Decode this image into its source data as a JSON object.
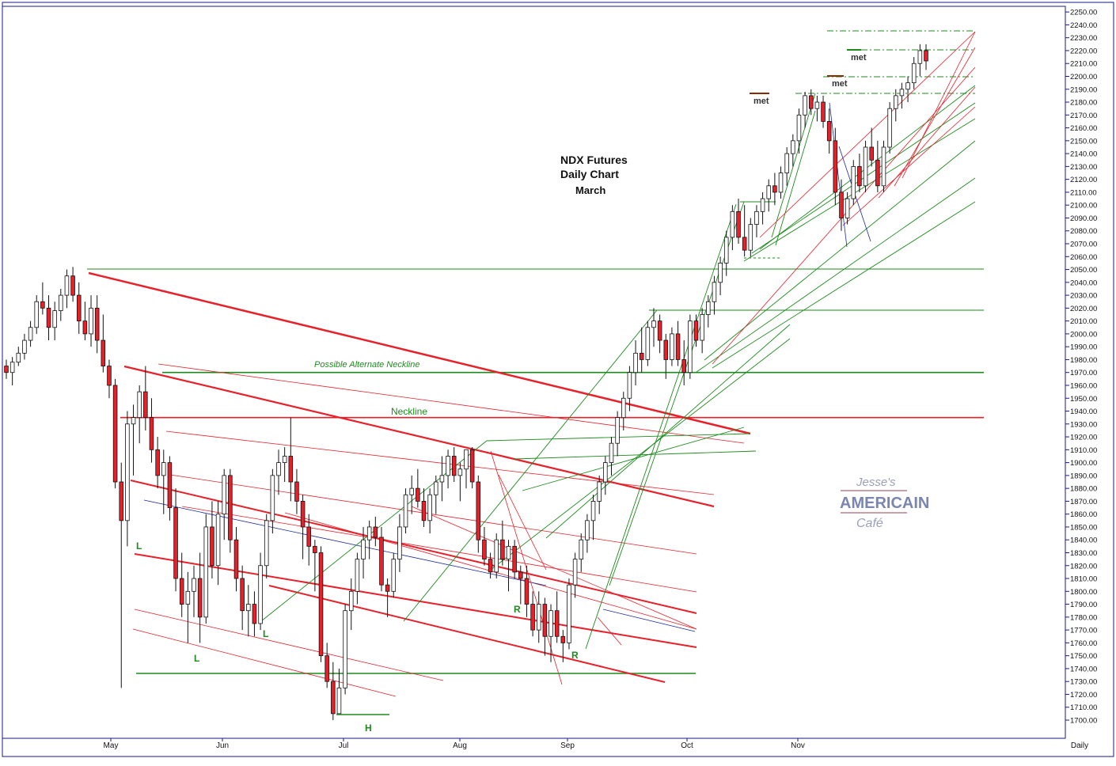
{
  "chart_data": {
    "type": "candlestick",
    "title": "NDX  Futures",
    "subtitle": "Daily Chart",
    "contract": "March",
    "watermark": "Jesse's AMERICAIN Café",
    "y_axis": {
      "ylim": [
        1690,
        2255
      ],
      "ticks": [
        1700,
        1710,
        1720,
        1730,
        1740,
        1750,
        1760,
        1770,
        1780,
        1790,
        1800,
        1810,
        1820,
        1830,
        1840,
        1850,
        1860,
        1870,
        1880,
        1890,
        1900,
        1910,
        1920,
        1930,
        1940,
        1950,
        1960,
        1970,
        1980,
        1990,
        2000,
        2010,
        2020,
        2030,
        2040,
        2050,
        2060,
        2070,
        2080,
        2090,
        2100,
        2110,
        2120,
        2130,
        2140,
        2150,
        2160,
        2170,
        2180,
        2190,
        2200,
        2210,
        2220,
        2230,
        2240,
        2250
      ],
      "decimals": 2
    },
    "x_axis": {
      "months": [
        "May",
        "Jun",
        "Jul",
        "Aug",
        "Sep",
        "Oct",
        "Nov"
      ],
      "period_label": "Daily"
    },
    "colors": {
      "up": "#ffffff",
      "down": "#e8202a",
      "red_line": "#e8202a",
      "green_line": "#1e8a1e",
      "blue_line": "#1a2a9a",
      "label_green": "#1e8a1e",
      "text": "#111111"
    },
    "horizontal_levels": [
      {
        "label": "Neckline",
        "value": 1935,
        "color": "#e8202a"
      },
      {
        "label": "Possible Alternate Neckline",
        "value": 1970,
        "color": "#1e8a1e"
      }
    ],
    "annotations": {
      "left_shoulder_1": "L",
      "left_shoulder_2": "L",
      "left_shoulder_3": "L",
      "head": "H",
      "right_shoulder_1": "R",
      "right_shoulder_2": "R",
      "met_1": "met",
      "met_2": "met",
      "met_3": "met"
    },
    "ohlc": [
      [
        1975,
        1980,
        1965,
        1970
      ],
      [
        1970,
        1982,
        1960,
        1978
      ],
      [
        1978,
        1990,
        1975,
        1985
      ],
      [
        1985,
        2000,
        1980,
        1995
      ],
      [
        1995,
        2010,
        1990,
        2005
      ],
      [
        2005,
        2030,
        2000,
        2025
      ],
      [
        2025,
        2040,
        2015,
        2020
      ],
      [
        2020,
        2030,
        1995,
        2005
      ],
      [
        2005,
        2025,
        1995,
        2018
      ],
      [
        2018,
        2035,
        2010,
        2030
      ],
      [
        2030,
        2050,
        2020,
        2045
      ],
      [
        2045,
        2052,
        2025,
        2030
      ],
      [
        2030,
        2040,
        2000,
        2010
      ],
      [
        2010,
        2025,
        1995,
        2000
      ],
      [
        2000,
        2030,
        1990,
        2020
      ],
      [
        2020,
        2030,
        1985,
        1995
      ],
      [
        1995,
        2015,
        1970,
        1975
      ],
      [
        1975,
        1980,
        1950,
        1960
      ],
      [
        1960,
        1965,
        1880,
        1885
      ],
      [
        1885,
        1900,
        1725,
        1855
      ],
      [
        1855,
        1940,
        1835,
        1930
      ],
      [
        1930,
        1945,
        1890,
        1935
      ],
      [
        1935,
        1960,
        1915,
        1955
      ],
      [
        1955,
        1975,
        1925,
        1935
      ],
      [
        1935,
        1950,
        1900,
        1910
      ],
      [
        1910,
        1920,
        1880,
        1890
      ],
      [
        1890,
        1910,
        1860,
        1900
      ],
      [
        1900,
        1905,
        1855,
        1865
      ],
      [
        1865,
        1880,
        1800,
        1810
      ],
      [
        1810,
        1830,
        1780,
        1790
      ],
      [
        1790,
        1815,
        1760,
        1800
      ],
      [
        1800,
        1820,
        1780,
        1810
      ],
      [
        1810,
        1830,
        1760,
        1780
      ],
      [
        1780,
        1860,
        1775,
        1850
      ],
      [
        1850,
        1870,
        1810,
        1820
      ],
      [
        1820,
        1870,
        1805,
        1860
      ],
      [
        1860,
        1895,
        1840,
        1890
      ],
      [
        1890,
        1895,
        1830,
        1840
      ],
      [
        1840,
        1850,
        1800,
        1810
      ],
      [
        1810,
        1820,
        1770,
        1785
      ],
      [
        1785,
        1805,
        1765,
        1790
      ],
      [
        1790,
        1800,
        1765,
        1775
      ],
      [
        1775,
        1830,
        1770,
        1820
      ],
      [
        1820,
        1860,
        1810,
        1855
      ],
      [
        1855,
        1895,
        1845,
        1890
      ],
      [
        1890,
        1910,
        1875,
        1900
      ],
      [
        1900,
        1912,
        1885,
        1905
      ],
      [
        1905,
        1935,
        1870,
        1885
      ],
      [
        1885,
        1895,
        1860,
        1870
      ],
      [
        1870,
        1875,
        1825,
        1850
      ],
      [
        1850,
        1860,
        1820,
        1835
      ],
      [
        1835,
        1840,
        1800,
        1830
      ],
      [
        1830,
        1835,
        1745,
        1750
      ],
      [
        1750,
        1760,
        1725,
        1730
      ],
      [
        1730,
        1745,
        1700,
        1705
      ],
      [
        1705,
        1740,
        1705,
        1725
      ],
      [
        1725,
        1790,
        1720,
        1785
      ],
      [
        1785,
        1810,
        1770,
        1800
      ],
      [
        1800,
        1830,
        1790,
        1825
      ],
      [
        1825,
        1850,
        1810,
        1840
      ],
      [
        1840,
        1855,
        1825,
        1850
      ],
      [
        1850,
        1858,
        1835,
        1842
      ],
      [
        1842,
        1850,
        1800,
        1805
      ],
      [
        1805,
        1810,
        1780,
        1800
      ],
      [
        1800,
        1830,
        1795,
        1825
      ],
      [
        1825,
        1860,
        1815,
        1850
      ],
      [
        1850,
        1880,
        1845,
        1875
      ],
      [
        1875,
        1890,
        1860,
        1880
      ],
      [
        1880,
        1895,
        1865,
        1870
      ],
      [
        1870,
        1880,
        1850,
        1855
      ],
      [
        1855,
        1880,
        1845,
        1875
      ],
      [
        1875,
        1890,
        1860,
        1885
      ],
      [
        1885,
        1905,
        1870,
        1890
      ],
      [
        1890,
        1910,
        1880,
        1905
      ],
      [
        1905,
        1912,
        1885,
        1890
      ],
      [
        1890,
        1900,
        1870,
        1895
      ],
      [
        1895,
        1910,
        1880,
        1910
      ],
      [
        1910,
        1912,
        1880,
        1885
      ],
      [
        1885,
        1890,
        1830,
        1840
      ],
      [
        1840,
        1850,
        1820,
        1825
      ],
      [
        1825,
        1830,
        1810,
        1815
      ],
      [
        1815,
        1845,
        1810,
        1840
      ],
      [
        1840,
        1855,
        1820,
        1825
      ],
      [
        1825,
        1840,
        1800,
        1835
      ],
      [
        1835,
        1840,
        1810,
        1815
      ],
      [
        1815,
        1820,
        1790,
        1810
      ],
      [
        1810,
        1820,
        1780,
        1790
      ],
      [
        1790,
        1800,
        1765,
        1770
      ],
      [
        1770,
        1800,
        1760,
        1790
      ],
      [
        1790,
        1795,
        1750,
        1765
      ],
      [
        1765,
        1790,
        1745,
        1785
      ],
      [
        1785,
        1800,
        1760,
        1765
      ],
      [
        1765,
        1770,
        1745,
        1760
      ],
      [
        1760,
        1810,
        1755,
        1805
      ],
      [
        1805,
        1830,
        1795,
        1825
      ],
      [
        1825,
        1845,
        1815,
        1840
      ],
      [
        1840,
        1860,
        1830,
        1855
      ],
      [
        1855,
        1875,
        1840,
        1870
      ],
      [
        1870,
        1890,
        1860,
        1885
      ],
      [
        1885,
        1905,
        1875,
        1900
      ],
      [
        1900,
        1920,
        1890,
        1915
      ],
      [
        1915,
        1940,
        1905,
        1935
      ],
      [
        1935,
        1955,
        1925,
        1950
      ],
      [
        1950,
        1975,
        1940,
        1970
      ],
      [
        1970,
        1995,
        1960,
        1985
      ],
      [
        1985,
        2005,
        1970,
        1980
      ],
      [
        1980,
        2010,
        1975,
        2005
      ],
      [
        2005,
        2020,
        1990,
        2010
      ],
      [
        2010,
        2015,
        1985,
        1995
      ],
      [
        1995,
        2000,
        1965,
        1980
      ],
      [
        1980,
        2005,
        1975,
        2000
      ],
      [
        2000,
        2010,
        1975,
        1980
      ],
      [
        1980,
        1995,
        1960,
        1970
      ],
      [
        1970,
        2015,
        1965,
        2010
      ],
      [
        2010,
        2015,
        1990,
        1995
      ],
      [
        1995,
        2020,
        1985,
        2015
      ],
      [
        2015,
        2030,
        2005,
        2025
      ],
      [
        2025,
        2045,
        2015,
        2040
      ],
      [
        2040,
        2060,
        2030,
        2055
      ],
      [
        2055,
        2080,
        2045,
        2075
      ],
      [
        2075,
        2100,
        2065,
        2095
      ],
      [
        2095,
        2105,
        2070,
        2075
      ],
      [
        2075,
        2100,
        2060,
        2065
      ],
      [
        2065,
        2090,
        2060,
        2085
      ],
      [
        2085,
        2100,
        2075,
        2095
      ],
      [
        2095,
        2110,
        2085,
        2105
      ],
      [
        2105,
        2120,
        2095,
        2115
      ],
      [
        2115,
        2125,
        2100,
        2110
      ],
      [
        2110,
        2130,
        2105,
        2125
      ],
      [
        2125,
        2145,
        2115,
        2140
      ],
      [
        2140,
        2155,
        2130,
        2150
      ],
      [
        2150,
        2175,
        2140,
        2170
      ],
      [
        2170,
        2188,
        2160,
        2185
      ],
      [
        2185,
        2190,
        2170,
        2175
      ],
      [
        2175,
        2185,
        2165,
        2180
      ],
      [
        2180,
        2185,
        2160,
        2165
      ],
      [
        2165,
        2175,
        2140,
        2150
      ],
      [
        2150,
        2160,
        2100,
        2110
      ],
      [
        2110,
        2120,
        2080,
        2090
      ],
      [
        2090,
        2110,
        2085,
        2105
      ],
      [
        2105,
        2135,
        2100,
        2130
      ],
      [
        2130,
        2140,
        2110,
        2115
      ],
      [
        2115,
        2150,
        2110,
        2145
      ],
      [
        2145,
        2160,
        2130,
        2135
      ],
      [
        2135,
        2150,
        2110,
        2115
      ],
      [
        2115,
        2150,
        2110,
        2145
      ],
      [
        2145,
        2180,
        2140,
        2175
      ],
      [
        2175,
        2190,
        2165,
        2185
      ],
      [
        2185,
        2195,
        2175,
        2190
      ],
      [
        2190,
        2200,
        2180,
        2195
      ],
      [
        2195,
        2215,
        2190,
        2210
      ],
      [
        2210,
        2225,
        2200,
        2220
      ],
      [
        2220,
        2225,
        2205,
        2212
      ]
    ]
  }
}
